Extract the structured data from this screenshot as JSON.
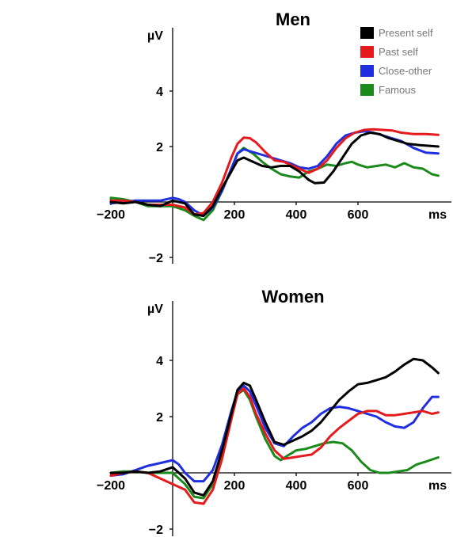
{
  "chart_data": [
    {
      "type": "line",
      "title": "Men",
      "ylabel": "µV",
      "xlabel": "ms",
      "xlim": [
        -230,
        860
      ],
      "ylim": [
        -2.3,
        6.3
      ],
      "xticks": [
        -200,
        200,
        400,
        600
      ],
      "yticks": [
        4,
        2,
        -2
      ],
      "xtick_labels": [
        "−200",
        "200",
        "400",
        "600"
      ],
      "ytick_labels": [
        "4",
        "2",
        "−2"
      ],
      "legend": {
        "placement": "top-right",
        "entries": [
          "Present self",
          "Past self",
          "Close-other",
          "Famous"
        ]
      },
      "series": [
        {
          "name": "Present self",
          "color": "#000000",
          "x": [
            -230,
            -200,
            -160,
            -120,
            -80,
            -40,
            0,
            40,
            70,
            100,
            130,
            160,
            190,
            210,
            230,
            260,
            290,
            320,
            350,
            380,
            410,
            440,
            460,
            490,
            520,
            550,
            580,
            610,
            640,
            670,
            700,
            730,
            760,
            800,
            860
          ],
          "y": [
            0.0,
            0.0,
            -0.05,
            0.0,
            -0.1,
            -0.15,
            0.05,
            -0.05,
            -0.45,
            -0.5,
            -0.15,
            0.5,
            1.1,
            1.5,
            1.6,
            1.45,
            1.3,
            1.25,
            1.3,
            1.3,
            1.1,
            0.8,
            0.68,
            0.7,
            1.1,
            1.6,
            2.1,
            2.4,
            2.5,
            2.45,
            2.3,
            2.2,
            2.1,
            2.05,
            2.0
          ]
        },
        {
          "name": "Past self",
          "color": "#e41a1c",
          "x": [
            -230,
            -200,
            -160,
            -120,
            -80,
            -40,
            0,
            40,
            70,
            100,
            130,
            160,
            190,
            210,
            230,
            250,
            270,
            300,
            330,
            360,
            390,
            420,
            440,
            470,
            500,
            530,
            560,
            590,
            620,
            650,
            680,
            710,
            740,
            780,
            820,
            860
          ],
          "y": [
            0.0,
            0.05,
            0.05,
            0.0,
            -0.1,
            -0.1,
            -0.1,
            -0.2,
            -0.45,
            -0.4,
            0.0,
            0.7,
            1.6,
            2.1,
            2.32,
            2.3,
            2.15,
            1.8,
            1.5,
            1.45,
            1.3,
            1.15,
            1.05,
            1.2,
            1.5,
            1.95,
            2.3,
            2.5,
            2.6,
            2.62,
            2.6,
            2.58,
            2.5,
            2.45,
            2.45,
            2.42
          ]
        },
        {
          "name": "Close-other",
          "color": "#1f2fe0",
          "x": [
            -230,
            -200,
            -160,
            -120,
            -80,
            -40,
            0,
            20,
            40,
            70,
            100,
            130,
            160,
            190,
            210,
            230,
            260,
            290,
            320,
            350,
            380,
            410,
            440,
            470,
            500,
            530,
            560,
            590,
            620,
            650,
            680,
            710,
            740,
            780,
            820,
            860
          ],
          "y": [
            -0.05,
            -0.05,
            0.0,
            0.05,
            0.05,
            0.05,
            0.15,
            0.1,
            0.0,
            -0.3,
            -0.5,
            -0.2,
            0.4,
            1.2,
            1.75,
            1.9,
            1.8,
            1.7,
            1.6,
            1.5,
            1.4,
            1.25,
            1.2,
            1.3,
            1.65,
            2.1,
            2.4,
            2.5,
            2.55,
            2.5,
            2.4,
            2.3,
            2.2,
            1.95,
            1.78,
            1.75
          ]
        },
        {
          "name": "Famous",
          "color": "#1a8a1a",
          "x": [
            -230,
            -200,
            -160,
            -120,
            -80,
            -40,
            0,
            40,
            70,
            100,
            130,
            160,
            190,
            210,
            230,
            260,
            290,
            320,
            350,
            380,
            410,
            440,
            470,
            500,
            530,
            560,
            580,
            600,
            630,
            660,
            690,
            720,
            750,
            780,
            810,
            840,
            860
          ],
          "y": [
            0.1,
            0.15,
            0.1,
            0.0,
            -0.15,
            -0.15,
            -0.15,
            -0.3,
            -0.5,
            -0.65,
            -0.3,
            0.4,
            1.2,
            1.75,
            1.95,
            1.75,
            1.45,
            1.2,
            1.0,
            0.92,
            0.88,
            1.1,
            1.2,
            1.35,
            1.3,
            1.4,
            1.45,
            1.35,
            1.25,
            1.3,
            1.35,
            1.25,
            1.4,
            1.25,
            1.2,
            1.0,
            0.95
          ]
        }
      ]
    },
    {
      "type": "line",
      "title": "Women",
      "ylabel": "µV",
      "xlabel": "ms",
      "xlim": [
        -230,
        860
      ],
      "ylim": [
        -2.3,
        6.3
      ],
      "xticks": [
        -200,
        200,
        400,
        600
      ],
      "yticks": [
        4,
        2,
        -2
      ],
      "xtick_labels": [
        "−200",
        "200",
        "400",
        "600"
      ],
      "ytick_labels": [
        "4",
        "2",
        "−2"
      ],
      "series": [
        {
          "name": "Present self",
          "color": "#000000",
          "x": [
            -230,
            -200,
            -160,
            -120,
            -80,
            -40,
            0,
            40,
            70,
            100,
            130,
            160,
            190,
            210,
            230,
            250,
            270,
            300,
            330,
            360,
            390,
            420,
            450,
            480,
            510,
            540,
            570,
            600,
            630,
            660,
            690,
            720,
            750,
            780,
            810,
            840,
            860
          ],
          "y": [
            0.0,
            0.0,
            0.0,
            0.05,
            0.0,
            0.05,
            0.2,
            -0.2,
            -0.7,
            -0.8,
            -0.3,
            0.8,
            2.1,
            2.95,
            3.2,
            3.1,
            2.6,
            1.8,
            1.1,
            1.0,
            1.15,
            1.3,
            1.5,
            1.8,
            2.2,
            2.6,
            2.9,
            3.15,
            3.2,
            3.3,
            3.4,
            3.6,
            3.85,
            4.05,
            4.0,
            3.75,
            3.55
          ]
        },
        {
          "name": "Past self",
          "color": "#e41a1c",
          "x": [
            -230,
            -200,
            -160,
            -120,
            -80,
            -40,
            0,
            40,
            70,
            100,
            130,
            160,
            190,
            210,
            230,
            250,
            270,
            300,
            330,
            360,
            390,
            420,
            450,
            480,
            510,
            540,
            570,
            600,
            630,
            660,
            690,
            720,
            750,
            780,
            810,
            840,
            860
          ],
          "y": [
            -0.1,
            -0.1,
            0.0,
            0.05,
            0.0,
            -0.2,
            -0.4,
            -0.6,
            -1.05,
            -1.1,
            -0.6,
            0.5,
            1.9,
            2.8,
            3.0,
            2.7,
            2.1,
            1.4,
            0.8,
            0.5,
            0.55,
            0.6,
            0.65,
            0.9,
            1.3,
            1.6,
            1.85,
            2.1,
            2.2,
            2.2,
            2.05,
            2.05,
            2.1,
            2.15,
            2.2,
            2.1,
            2.15
          ]
        },
        {
          "name": "Close-other",
          "color": "#1f2fe0",
          "x": [
            -230,
            -200,
            -160,
            -120,
            -80,
            -40,
            0,
            20,
            40,
            70,
            100,
            130,
            160,
            190,
            210,
            230,
            250,
            270,
            300,
            330,
            360,
            390,
            420,
            450,
            480,
            510,
            540,
            570,
            600,
            630,
            660,
            690,
            720,
            750,
            780,
            810,
            840,
            860
          ],
          "y": [
            -0.1,
            -0.1,
            -0.05,
            0.1,
            0.25,
            0.35,
            0.45,
            0.3,
            0.0,
            -0.3,
            -0.3,
            0.1,
            1.0,
            2.2,
            2.9,
            3.1,
            2.9,
            2.4,
            1.6,
            1.05,
            0.95,
            1.3,
            1.6,
            1.8,
            2.1,
            2.3,
            2.35,
            2.3,
            2.2,
            2.1,
            2.0,
            1.8,
            1.65,
            1.6,
            1.8,
            2.3,
            2.7,
            2.7
          ]
        },
        {
          "name": "Famous",
          "color": "#1a8a1a",
          "x": [
            -230,
            -200,
            -160,
            -120,
            -80,
            -40,
            0,
            40,
            70,
            100,
            130,
            160,
            190,
            210,
            230,
            250,
            270,
            300,
            330,
            350,
            370,
            400,
            430,
            460,
            490,
            520,
            550,
            580,
            610,
            640,
            670,
            700,
            730,
            760,
            790,
            820,
            860
          ],
          "y": [
            0.0,
            0.0,
            0.05,
            0.05,
            0.0,
            0.0,
            0.0,
            -0.4,
            -0.85,
            -0.9,
            -0.4,
            0.7,
            2.0,
            2.8,
            2.95,
            2.6,
            2.0,
            1.2,
            0.6,
            0.45,
            0.6,
            0.8,
            0.85,
            0.95,
            1.05,
            1.1,
            1.05,
            0.8,
            0.4,
            0.1,
            0.0,
            0.0,
            0.05,
            0.1,
            0.3,
            0.4,
            0.55
          ]
        }
      ]
    }
  ]
}
